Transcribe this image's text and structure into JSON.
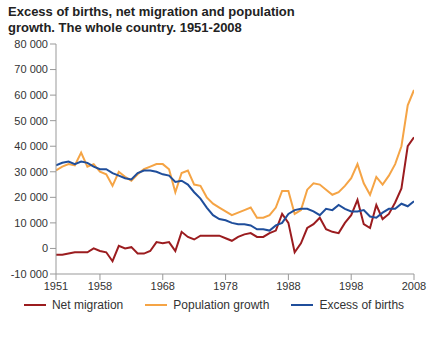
{
  "chart_data": {
    "type": "line",
    "title": "Excess of births, net migration and population growth. The whole country. 1951-2008",
    "x": [
      1951,
      1952,
      1953,
      1954,
      1955,
      1956,
      1957,
      1958,
      1959,
      1960,
      1961,
      1962,
      1963,
      1964,
      1965,
      1966,
      1967,
      1968,
      1969,
      1970,
      1971,
      1972,
      1973,
      1974,
      1975,
      1976,
      1977,
      1978,
      1979,
      1980,
      1981,
      1982,
      1983,
      1984,
      1985,
      1986,
      1987,
      1988,
      1989,
      1990,
      1991,
      1992,
      1993,
      1994,
      1995,
      1996,
      1997,
      1998,
      1999,
      2000,
      2001,
      2002,
      2003,
      2004,
      2005,
      2006,
      2007,
      2008
    ],
    "series": [
      {
        "name": "Net migration",
        "color": "#9b1c1f",
        "values": [
          -2500,
          -2500,
          -2000,
          -1500,
          -1500,
          -1500,
          0,
          -1000,
          -1500,
          -5000,
          1000,
          0,
          500,
          -2000,
          -2000,
          -1000,
          2500,
          2000,
          2500,
          -1000,
          6500,
          4500,
          3500,
          5000,
          5000,
          5000,
          5000,
          4000,
          3000,
          4500,
          5500,
          6000,
          4500,
          4500,
          6000,
          7000,
          13500,
          10000,
          -1500,
          2000,
          8000,
          9500,
          12000,
          7500,
          6500,
          6000,
          10000,
          13000,
          19000,
          9500,
          8000,
          17000,
          11500,
          13500,
          18000,
          23500,
          40000,
          43500
        ]
      },
      {
        "name": "Population growth",
        "color": "#f5a445",
        "values": [
          30500,
          32000,
          33000,
          32500,
          37500,
          32000,
          33000,
          30000,
          29000,
          24500,
          30000,
          28000,
          26500,
          29000,
          31000,
          32000,
          33000,
          33000,
          31000,
          22000,
          29500,
          30500,
          25000,
          24500,
          20000,
          17500,
          16000,
          14500,
          13000,
          14000,
          15000,
          16000,
          12000,
          12000,
          13000,
          16000,
          22500,
          22500,
          13500,
          15000,
          23000,
          25500,
          25000,
          23000,
          21000,
          22000,
          24500,
          27500,
          33000,
          25500,
          21000,
          28000,
          25000,
          28500,
          33000,
          40000,
          56000,
          62000
        ]
      },
      {
        "name": "Excess of births",
        "color": "#1f4e9b",
        "values": [
          32500,
          33500,
          34000,
          33000,
          34000,
          33500,
          32000,
          31000,
          31000,
          29500,
          28500,
          27500,
          27000,
          29500,
          30500,
          30500,
          30000,
          29000,
          28500,
          26000,
          26500,
          25000,
          22000,
          19500,
          16000,
          13000,
          11500,
          11000,
          10000,
          9500,
          9500,
          9000,
          7500,
          7500,
          7000,
          9000,
          10000,
          13500,
          15000,
          15500,
          15500,
          14500,
          13000,
          15500,
          15000,
          17000,
          15500,
          14500,
          14500,
          15000,
          12500,
          12000,
          14000,
          15500,
          15500,
          17500,
          16500,
          18500
        ]
      }
    ],
    "xlim": [
      1951,
      2008
    ],
    "xticks": [
      1951,
      1958,
      1968,
      1978,
      1988,
      1998,
      2008
    ],
    "ylim": [
      -10000,
      80000
    ],
    "yticks": [
      {
        "value": -10000,
        "label": "-10 000"
      },
      0,
      {
        "value": 10000,
        "label": "10 000"
      },
      {
        "value": 20000,
        "label": "20 000"
      },
      {
        "value": 30000,
        "label": "30 000"
      },
      {
        "value": 40000,
        "label": "40 000"
      },
      {
        "value": 50000,
        "label": "50 000"
      },
      {
        "value": 60000,
        "label": "60 000"
      },
      {
        "value": 70000,
        "label": "70 000"
      },
      {
        "value": 80000,
        "label": "80 000"
      }
    ],
    "grid": false,
    "legend": "bottom"
  }
}
